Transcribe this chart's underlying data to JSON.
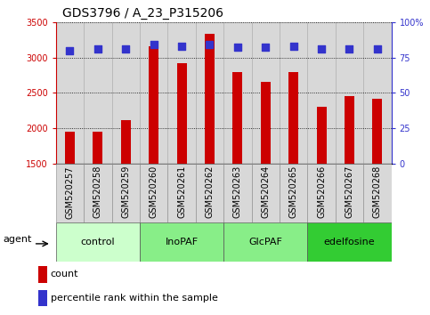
{
  "title": "GDS3796 / A_23_P315206",
  "categories": [
    "GSM520257",
    "GSM520258",
    "GSM520259",
    "GSM520260",
    "GSM520261",
    "GSM520262",
    "GSM520263",
    "GSM520264",
    "GSM520265",
    "GSM520266",
    "GSM520267",
    "GSM520268"
  ],
  "counts": [
    1950,
    1950,
    2120,
    3160,
    2920,
    3340,
    2800,
    2660,
    2800,
    2300,
    2460,
    2420
  ],
  "percentile": [
    80,
    81,
    81,
    84,
    83,
    84,
    82,
    82,
    83,
    81,
    81,
    81
  ],
  "bar_color": "#cc0000",
  "dot_color": "#3333cc",
  "ylim_left": [
    1500,
    3500
  ],
  "ylim_right": [
    0,
    100
  ],
  "yticks_left": [
    1500,
    2000,
    2500,
    3000,
    3500
  ],
  "yticks_right": [
    0,
    25,
    50,
    75,
    100
  ],
  "left_color": "#cc0000",
  "right_color": "#3333cc",
  "groups": [
    {
      "label": "control",
      "start": 0,
      "end": 3,
      "color": "#ccffcc"
    },
    {
      "label": "InoPAF",
      "start": 3,
      "end": 6,
      "color": "#88ee88"
    },
    {
      "label": "GlcPAF",
      "start": 6,
      "end": 9,
      "color": "#88ee88"
    },
    {
      "label": "edelfosine",
      "start": 9,
      "end": 12,
      "color": "#33cc33"
    }
  ],
  "agent_label": "agent",
  "legend_count_label": "count",
  "legend_pct_label": "percentile rank within the sample",
  "cell_bg": "#d8d8d8",
  "title_fontsize": 10,
  "tick_fontsize": 7,
  "label_fontsize": 8,
  "dot_size": 40,
  "bar_width": 0.35
}
